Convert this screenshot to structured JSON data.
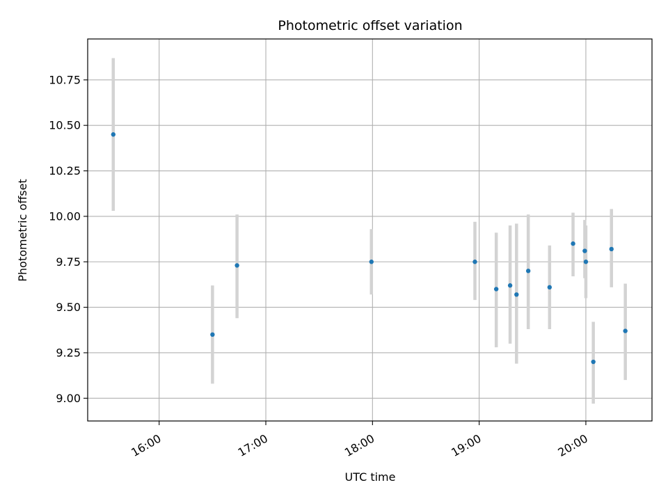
{
  "chart_data": {
    "type": "scatter",
    "title": "Photometric offset variation",
    "xlabel": "UTC time",
    "ylabel": "Photometric offset",
    "grid": true,
    "xlim": [
      15.33,
      20.62
    ],
    "ylim": [
      8.875,
      10.975
    ],
    "x_ticks": [
      {
        "value": 16,
        "label": "16:00"
      },
      {
        "value": 17,
        "label": "17:00"
      },
      {
        "value": 18,
        "label": "18:00"
      },
      {
        "value": 19,
        "label": "19:00"
      },
      {
        "value": 20,
        "label": "20:00"
      }
    ],
    "y_ticks": [
      {
        "value": 9.0,
        "label": "9.00"
      },
      {
        "value": 9.25,
        "label": "9.25"
      },
      {
        "value": 9.5,
        "label": "9.50"
      },
      {
        "value": 9.75,
        "label": "9.75"
      },
      {
        "value": 10.0,
        "label": "10.00"
      },
      {
        "value": 10.25,
        "label": "10.25"
      },
      {
        "value": 10.5,
        "label": "10.50"
      },
      {
        "value": 10.75,
        "label": "10.75"
      }
    ],
    "point_color": "#1f77b4",
    "errorbar_color": "#d3d3d3",
    "points": [
      {
        "x": 15.57,
        "y": 10.45,
        "ylow": 10.03,
        "yhigh": 10.87
      },
      {
        "x": 16.5,
        "y": 9.35,
        "ylow": 9.08,
        "yhigh": 9.62
      },
      {
        "x": 16.73,
        "y": 9.73,
        "ylow": 9.44,
        "yhigh": 10.01
      },
      {
        "x": 17.99,
        "y": 9.75,
        "ylow": 9.57,
        "yhigh": 9.93
      },
      {
        "x": 18.96,
        "y": 9.75,
        "ylow": 9.54,
        "yhigh": 9.97
      },
      {
        "x": 19.16,
        "y": 9.6,
        "ylow": 9.28,
        "yhigh": 9.91
      },
      {
        "x": 19.29,
        "y": 9.62,
        "ylow": 9.3,
        "yhigh": 9.95
      },
      {
        "x": 19.35,
        "y": 9.57,
        "ylow": 9.19,
        "yhigh": 9.96
      },
      {
        "x": 19.46,
        "y": 9.7,
        "ylow": 9.38,
        "yhigh": 10.01
      },
      {
        "x": 19.66,
        "y": 9.61,
        "ylow": 9.38,
        "yhigh": 9.84
      },
      {
        "x": 19.88,
        "y": 9.85,
        "ylow": 9.67,
        "yhigh": 10.02
      },
      {
        "x": 19.99,
        "y": 9.81,
        "ylow": 9.66,
        "yhigh": 9.98
      },
      {
        "x": 20.0,
        "y": 9.75,
        "ylow": 9.55,
        "yhigh": 9.95
      },
      {
        "x": 20.07,
        "y": 9.2,
        "ylow": 8.97,
        "yhigh": 9.42
      },
      {
        "x": 20.24,
        "y": 9.82,
        "ylow": 9.61,
        "yhigh": 10.04
      },
      {
        "x": 20.37,
        "y": 9.37,
        "ylow": 9.1,
        "yhigh": 9.63
      }
    ]
  }
}
